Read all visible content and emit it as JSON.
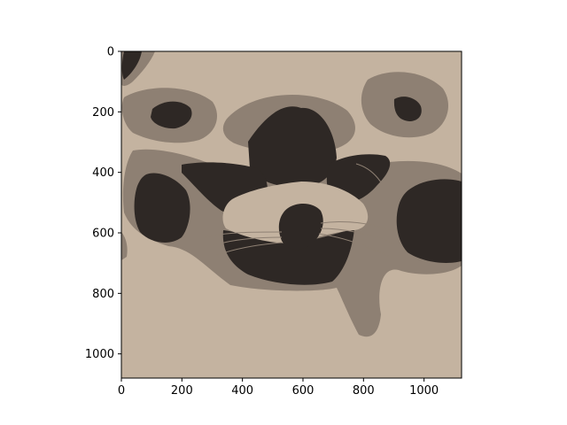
{
  "chart_data": {
    "type": "heatmap",
    "title": "",
    "xlabel": "",
    "ylabel": "",
    "image": {
      "width": 1124,
      "height": 1080,
      "colormap": "posterized",
      "palette": {
        "light": "#c4b3a0",
        "mid": "#8e8073",
        "dark": "#2e2825"
      }
    },
    "xlim": [
      0,
      1124
    ],
    "ylim": [
      1080,
      0
    ],
    "x_ticks": [
      0,
      200,
      400,
      600,
      800,
      1000
    ],
    "y_ticks": [
      0,
      200,
      400,
      600,
      800,
      1000
    ],
    "x_tick_labels": [
      "0",
      "200",
      "400",
      "600",
      "800",
      "1000"
    ],
    "y_tick_labels": [
      "0",
      "200",
      "400",
      "600",
      "800",
      "1000"
    ],
    "grid": false
  }
}
